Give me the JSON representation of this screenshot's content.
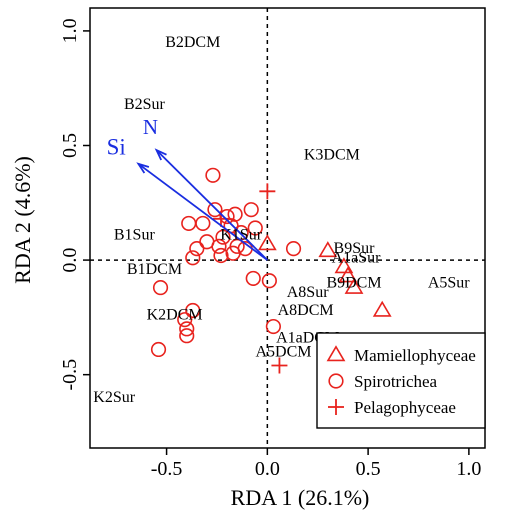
{
  "chart_data": {
    "type": "scatter",
    "title": "",
    "xlabel": "RDA 1 (26.1%)",
    "ylabel": "RDA 2 (4.6%)",
    "xlim": [
      -0.88,
      1.08
    ],
    "ylim": [
      -0.82,
      1.1
    ],
    "x_ticks": [
      -0.5,
      0.0,
      0.5,
      1.0
    ],
    "x_tick_labels": [
      "-0.5",
      "0.0",
      "0.5",
      "1.0"
    ],
    "y_ticks": [
      -0.5,
      0.0,
      0.5,
      1.0
    ],
    "y_tick_labels": [
      "-0.5",
      "0.0",
      "0.5",
      "1.0"
    ],
    "reference_lines": {
      "x": 0,
      "y": 0,
      "style": "dashed"
    },
    "colors": {
      "points": "#e8231e",
      "arrows": "#1a2ee0",
      "text": "#000000",
      "axis": "#000000"
    },
    "legend": {
      "position": "bottom-right",
      "entries": [
        {
          "label": "Mamiellophyceae",
          "marker": "triangle"
        },
        {
          "label": "Spirotrichea",
          "marker": "circle"
        },
        {
          "label": "Pelagophyceae",
          "marker": "plus"
        }
      ]
    },
    "arrows": [
      {
        "label": "N",
        "x": -0.55,
        "y": 0.48,
        "label_x": -0.58,
        "label_y": 0.55,
        "label_size": "medium"
      },
      {
        "label": "Si",
        "x": -0.64,
        "y": 0.42,
        "label_x": -0.75,
        "label_y": 0.46,
        "label_size": "large"
      }
    ],
    "site_labels": [
      {
        "text": "B2DCM",
        "x": -0.37,
        "y": 0.93
      },
      {
        "text": "B2Sur",
        "x": -0.61,
        "y": 0.66
      },
      {
        "text": "K3DCM",
        "x": 0.32,
        "y": 0.44
      },
      {
        "text": "B1Sur",
        "x": -0.66,
        "y": 0.09
      },
      {
        "text": "K1Sur",
        "x": -0.13,
        "y": 0.09
      },
      {
        "text": "B9Sur",
        "x": 0.43,
        "y": 0.03
      },
      {
        "text": "A1aSur",
        "x": 0.44,
        "y": -0.01
      },
      {
        "text": "B1DCM",
        "x": -0.56,
        "y": -0.06
      },
      {
        "text": "B9DCM",
        "x": 0.43,
        "y": -0.12
      },
      {
        "text": "A5Sur",
        "x": 0.9,
        "y": -0.12
      },
      {
        "text": "A8Sur",
        "x": 0.2,
        "y": -0.16
      },
      {
        "text": "K2DCM",
        "x": -0.46,
        "y": -0.26
      },
      {
        "text": "A8DCM",
        "x": 0.19,
        "y": -0.24
      },
      {
        "text": "A1aDCM",
        "x": 0.2,
        "y": -0.36
      },
      {
        "text": "A5DCM",
        "x": 0.08,
        "y": -0.42
      },
      {
        "text": "K2Sur",
        "x": -0.76,
        "y": -0.62
      }
    ],
    "series": [
      {
        "name": "Mamiellophyceae",
        "marker": "triangle",
        "points": [
          {
            "x": 0.0,
            "y": 0.07
          },
          {
            "x": 0.3,
            "y": 0.04
          },
          {
            "x": 0.38,
            "y": -0.03
          },
          {
            "x": 0.4,
            "y": -0.07
          },
          {
            "x": 0.43,
            "y": -0.12
          },
          {
            "x": 0.57,
            "y": -0.22
          }
        ]
      },
      {
        "name": "Spirotrichea",
        "marker": "circle",
        "points": [
          {
            "x": -0.27,
            "y": 0.37
          },
          {
            "x": -0.26,
            "y": 0.22
          },
          {
            "x": -0.32,
            "y": 0.16
          },
          {
            "x": -0.39,
            "y": 0.16
          },
          {
            "x": -0.2,
            "y": 0.19
          },
          {
            "x": -0.16,
            "y": 0.2
          },
          {
            "x": -0.08,
            "y": 0.22
          },
          {
            "x": -0.06,
            "y": 0.14
          },
          {
            "x": -0.13,
            "y": 0.12
          },
          {
            "x": -0.18,
            "y": 0.15
          },
          {
            "x": -0.22,
            "y": 0.1
          },
          {
            "x": -0.24,
            "y": 0.06
          },
          {
            "x": -0.3,
            "y": 0.08
          },
          {
            "x": -0.35,
            "y": 0.05
          },
          {
            "x": -0.37,
            "y": 0.01
          },
          {
            "x": -0.23,
            "y": 0.02
          },
          {
            "x": -0.17,
            "y": 0.03
          },
          {
            "x": -0.15,
            "y": 0.06
          },
          {
            "x": -0.11,
            "y": 0.05
          },
          {
            "x": 0.13,
            "y": 0.05
          },
          {
            "x": -0.53,
            "y": -0.12
          },
          {
            "x": -0.37,
            "y": -0.22
          },
          {
            "x": -0.41,
            "y": -0.26
          },
          {
            "x": -0.4,
            "y": -0.3
          },
          {
            "x": -0.4,
            "y": -0.33
          },
          {
            "x": -0.54,
            "y": -0.39
          },
          {
            "x": -0.07,
            "y": -0.08
          },
          {
            "x": 0.01,
            "y": -0.09
          },
          {
            "x": 0.03,
            "y": -0.29
          }
        ]
      },
      {
        "name": "Pelagophyceae",
        "marker": "plus",
        "points": [
          {
            "x": 0.0,
            "y": 0.3
          },
          {
            "x": -0.23,
            "y": 0.18
          },
          {
            "x": 0.06,
            "y": -0.46
          }
        ]
      }
    ]
  }
}
